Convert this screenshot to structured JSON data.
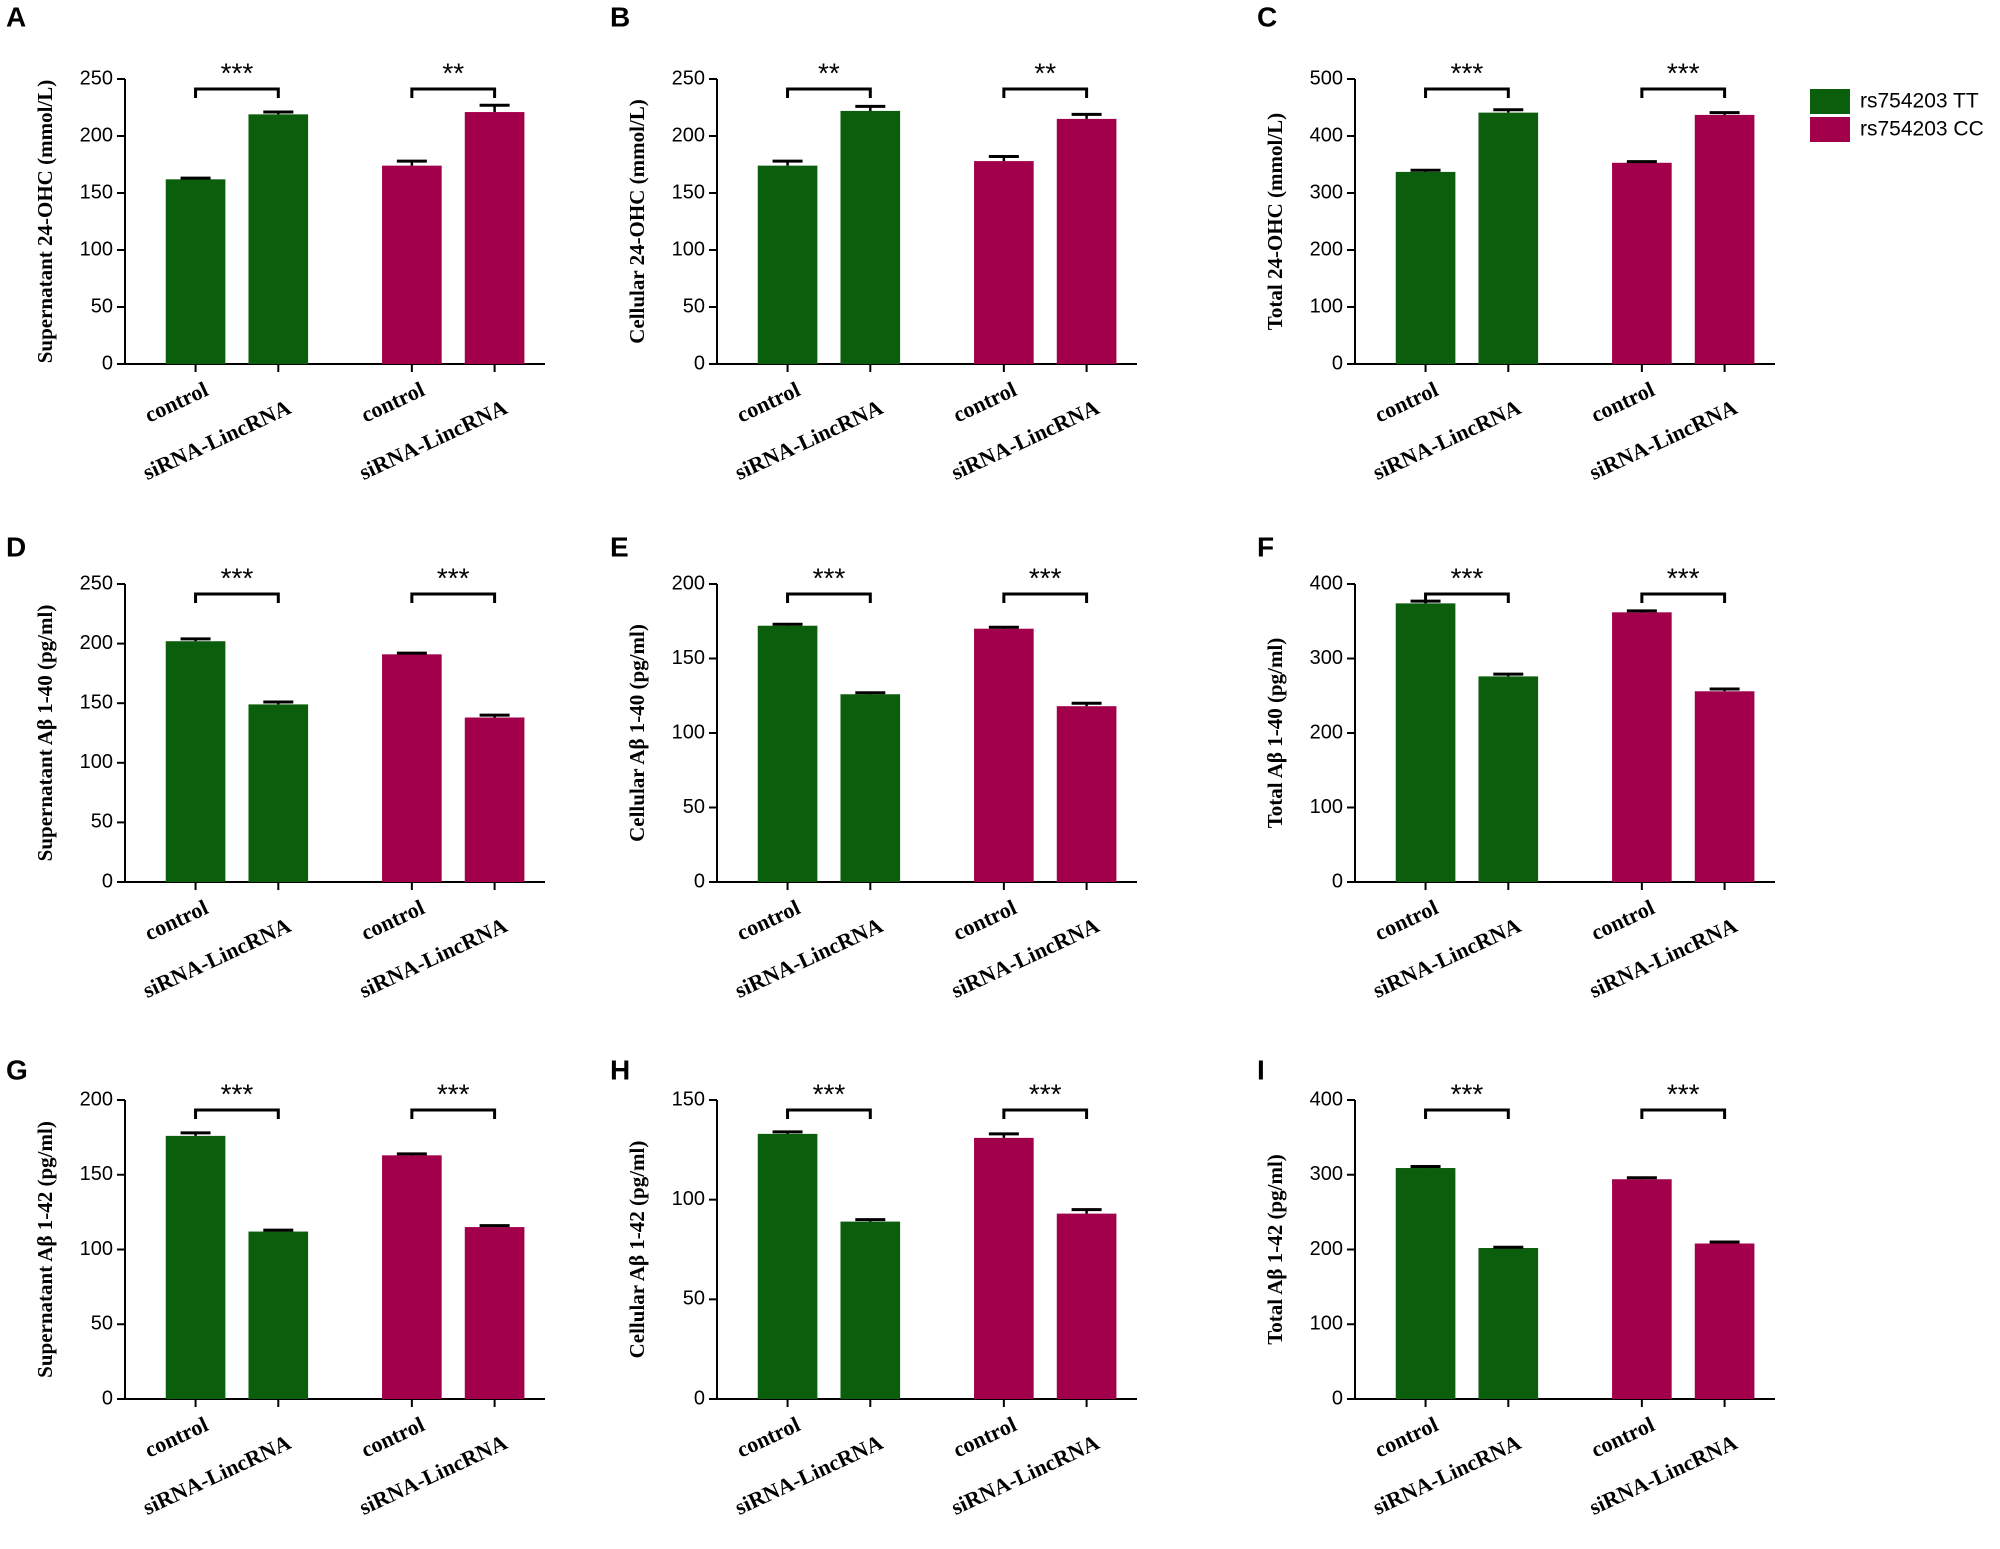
{
  "legend": [
    {
      "name": "rs754203 TT",
      "color": "#0b5e0b"
    },
    {
      "name": "rs754203 CC",
      "color": "#a3004b"
    }
  ],
  "chart_data": [
    {
      "type": "bar",
      "label": "A",
      "y_label": "Supernatant 24-OHC (mmol/L)",
      "categories": [
        "control",
        "siRNA-LincRNA"
      ],
      "ylim": [
        0,
        250
      ],
      "yticks": [
        0,
        50,
        100,
        150,
        200,
        250
      ],
      "series": [
        {
          "values": [
            162,
            219
          ],
          "errors": [
            1,
            2
          ]
        },
        {
          "values": [
            174,
            221
          ],
          "errors": [
            4,
            6
          ]
        }
      ],
      "annotations": [
        "***",
        "**"
      ]
    },
    {
      "type": "bar",
      "label": "B",
      "y_label": "Cellular 24-OHC (mmol/L)",
      "categories": [
        "control",
        "siRNA-LincRNA"
      ],
      "ylim": [
        0,
        250
      ],
      "yticks": [
        0,
        50,
        100,
        150,
        200,
        250
      ],
      "series": [
        {
          "values": [
            174,
            222
          ],
          "errors": [
            4,
            4
          ]
        },
        {
          "values": [
            178,
            215
          ],
          "errors": [
            4,
            4
          ]
        }
      ],
      "annotations": [
        "**",
        "**"
      ]
    },
    {
      "type": "bar",
      "label": "C",
      "y_label": "Total 24-OHC (mmol/L)",
      "categories": [
        "control",
        "siRNA-LincRNA"
      ],
      "ylim": [
        0,
        500
      ],
      "yticks": [
        0,
        100,
        200,
        300,
        400,
        500
      ],
      "series": [
        {
          "values": [
            337,
            441
          ],
          "errors": [
            3,
            5
          ]
        },
        {
          "values": [
            353,
            437
          ],
          "errors": [
            2,
            4
          ]
        }
      ],
      "annotations": [
        "***",
        "***"
      ]
    },
    {
      "type": "bar",
      "label": "D",
      "y_label": "Supernatant Aβ 1-40 (pg/ml)",
      "categories": [
        "control",
        "siRNA-LincRNA"
      ],
      "ylim": [
        0,
        250
      ],
      "yticks": [
        0,
        50,
        100,
        150,
        200,
        250
      ],
      "series": [
        {
          "values": [
            202,
            149
          ],
          "errors": [
            2,
            2
          ]
        },
        {
          "values": [
            191,
            138
          ],
          "errors": [
            1,
            2
          ]
        }
      ],
      "annotations": [
        "***",
        "***"
      ]
    },
    {
      "type": "bar",
      "label": "E",
      "y_label": "Cellular Aβ 1-40 (pg/ml)",
      "categories": [
        "control",
        "siRNA-LincRNA"
      ],
      "ylim": [
        0,
        200
      ],
      "yticks": [
        0,
        50,
        100,
        150,
        200
      ],
      "series": [
        {
          "values": [
            172,
            126
          ],
          "errors": [
            1,
            1
          ]
        },
        {
          "values": [
            170,
            118
          ],
          "errors": [
            1,
            2
          ]
        }
      ],
      "annotations": [
        "***",
        "***"
      ]
    },
    {
      "type": "bar",
      "label": "F",
      "y_label": "Total Aβ 1-40 (pg/ml)",
      "categories": [
        "control",
        "siRNA-LincRNA"
      ],
      "ylim": [
        0,
        400
      ],
      "yticks": [
        0,
        100,
        200,
        300,
        400
      ],
      "series": [
        {
          "values": [
            374,
            276
          ],
          "errors": [
            3,
            3
          ]
        },
        {
          "values": [
            362,
            256
          ],
          "errors": [
            2,
            3
          ]
        }
      ],
      "annotations": [
        "***",
        "***"
      ]
    },
    {
      "type": "bar",
      "label": "G",
      "y_label": "Supernatant Aβ 1-42 (pg/ml)",
      "categories": [
        "control",
        "siRNA-LincRNA"
      ],
      "ylim": [
        0,
        200
      ],
      "yticks": [
        0,
        50,
        100,
        150,
        200
      ],
      "series": [
        {
          "values": [
            176,
            112
          ],
          "errors": [
            2,
            1
          ]
        },
        {
          "values": [
            163,
            115
          ],
          "errors": [
            1,
            1
          ]
        }
      ],
      "annotations": [
        "***",
        "***"
      ]
    },
    {
      "type": "bar",
      "label": "H",
      "y_label": "Cellular Aβ 1-42 (pg/ml)",
      "categories": [
        "control",
        "siRNA-LincRNA"
      ],
      "ylim": [
        0,
        150
      ],
      "yticks": [
        0,
        50,
        100,
        150
      ],
      "series": [
        {
          "values": [
            133,
            89
          ],
          "errors": [
            1,
            1
          ]
        },
        {
          "values": [
            131,
            93
          ],
          "errors": [
            2,
            2
          ]
        }
      ],
      "annotations": [
        "***",
        "***"
      ]
    },
    {
      "type": "bar",
      "label": "I",
      "y_label": "Total Aβ 1-42 (pg/ml)",
      "categories": [
        "control",
        "siRNA-LincRNA"
      ],
      "ylim": [
        0,
        400
      ],
      "yticks": [
        0,
        100,
        200,
        300,
        400
      ],
      "series": [
        {
          "values": [
            309,
            202
          ],
          "errors": [
            2,
            1
          ]
        },
        {
          "values": [
            294,
            208
          ],
          "errors": [
            2,
            2
          ]
        }
      ],
      "annotations": [
        "***",
        "***"
      ]
    }
  ]
}
